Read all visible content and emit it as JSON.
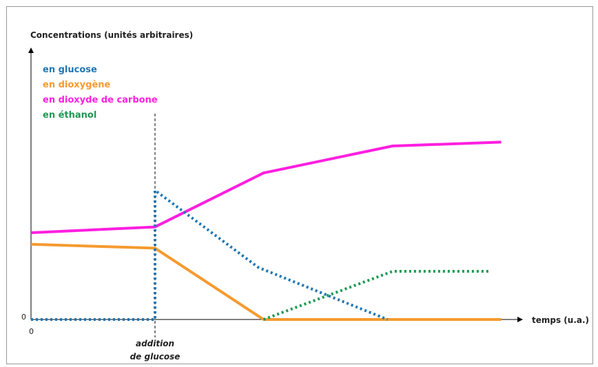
{
  "chart_data": {
    "type": "line",
    "ylabel": "Concentrations  (unités arbitraires)",
    "xlabel": "temps (u.a.)",
    "x_origin_label": "0",
    "y_origin_label": "0",
    "annotation": {
      "line1": "addition",
      "line2": "de glucose",
      "x": 2.4
    },
    "legend_position": "top-left",
    "xlim": [
      0,
      9
    ],
    "ylim": [
      0,
      10
    ],
    "series": [
      {
        "name": "en glucose",
        "color": "#1f77b4",
        "style": "dotted",
        "points": [
          [
            0,
            0
          ],
          [
            2.4,
            0
          ],
          [
            2.4,
            6.7
          ],
          [
            4.4,
            2.7
          ],
          [
            6.9,
            0
          ]
        ]
      },
      {
        "name": "en dioxygène",
        "color": "#f59a2f",
        "style": "solid",
        "points": [
          [
            0,
            3.9
          ],
          [
            2.4,
            3.7
          ],
          [
            4.5,
            0
          ],
          [
            9.1,
            0
          ]
        ]
      },
      {
        "name": "en dioxyde de carbone",
        "color": "#ff1fe0",
        "style": "solid",
        "points": [
          [
            0,
            4.5
          ],
          [
            2.4,
            4.8
          ],
          [
            4.5,
            7.6
          ],
          [
            7.0,
            9.0
          ],
          [
            9.1,
            9.2
          ]
        ]
      },
      {
        "name": "en éthanol",
        "color": "#1b9a52",
        "style": "dotted",
        "points": [
          [
            4.5,
            0
          ],
          [
            7.0,
            2.5
          ],
          [
            8.9,
            2.5
          ]
        ]
      }
    ]
  }
}
